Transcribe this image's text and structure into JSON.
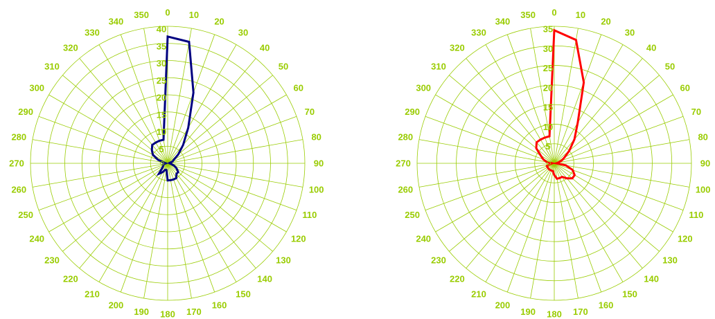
{
  "chart_data": [
    {
      "type": "radar",
      "angle_unit": "degrees",
      "angles": [
        0,
        10,
        20,
        30,
        40,
        50,
        60,
        70,
        80,
        90,
        100,
        110,
        120,
        130,
        140,
        150,
        160,
        170,
        180,
        190,
        200,
        210,
        220,
        230,
        240,
        250,
        260,
        270,
        280,
        290,
        300,
        310,
        320,
        330,
        340,
        350
      ],
      "angle_labels": [
        "0",
        "10",
        "20",
        "30",
        "40",
        "50",
        "60",
        "70",
        "80",
        "90",
        "100",
        "110",
        "120",
        "130",
        "140",
        "150",
        "160",
        "170",
        "180",
        "190",
        "200",
        "210",
        "220",
        "230",
        "240",
        "250",
        "260",
        "270",
        "280",
        "290",
        "300",
        "310",
        "320",
        "330",
        "340",
        "350"
      ],
      "radial_ticks": [
        "5",
        "10",
        "15",
        "20",
        "25",
        "30",
        "35",
        "40"
      ],
      "rmax": 40,
      "grid": true,
      "series": [
        {
          "color": "#000080",
          "values": [
            37,
            36,
            22,
            12,
            7,
            4,
            2,
            1.5,
            0.5,
            0.5,
            1,
            2,
            3,
            4,
            4,
            5,
            5,
            5,
            5,
            2,
            2,
            3,
            4,
            2,
            1.5,
            1.5,
            1,
            0.5,
            1,
            3,
            5,
            6,
            7,
            7,
            7,
            7
          ]
        }
      ]
    },
    {
      "type": "radar",
      "angle_unit": "degrees",
      "angles": [
        0,
        10,
        20,
        30,
        40,
        50,
        60,
        70,
        80,
        90,
        100,
        110,
        120,
        130,
        140,
        150,
        160,
        170,
        180,
        190,
        200,
        210,
        220,
        230,
        240,
        250,
        260,
        270,
        280,
        290,
        300,
        310,
        320,
        330,
        340,
        350
      ],
      "angle_labels": [
        "0",
        "10",
        "20",
        "30",
        "40",
        "50",
        "60",
        "70",
        "80",
        "90",
        "100",
        "110",
        "120",
        "130",
        "140",
        "150",
        "160",
        "170",
        "180",
        "190",
        "200",
        "210",
        "220",
        "230",
        "240",
        "250",
        "260",
        "270",
        "280",
        "290",
        "300",
        "310",
        "320",
        "330",
        "340",
        "350"
      ],
      "radial_ticks": [
        "5",
        "10",
        "15",
        "20",
        "25",
        "30",
        "35"
      ],
      "rmax": 35,
      "grid": true,
      "series": [
        {
          "color": "#ff0000",
          "values": [
            34,
            32,
            22,
            12,
            8,
            5,
            3,
            2,
            1,
            0.5,
            3,
            5,
            6,
            6,
            5,
            4,
            4,
            4,
            3,
            2,
            2,
            2,
            2,
            2,
            2,
            2,
            1,
            0.5,
            2,
            3,
            4,
            6,
            7,
            7,
            7,
            7
          ]
        }
      ]
    }
  ]
}
